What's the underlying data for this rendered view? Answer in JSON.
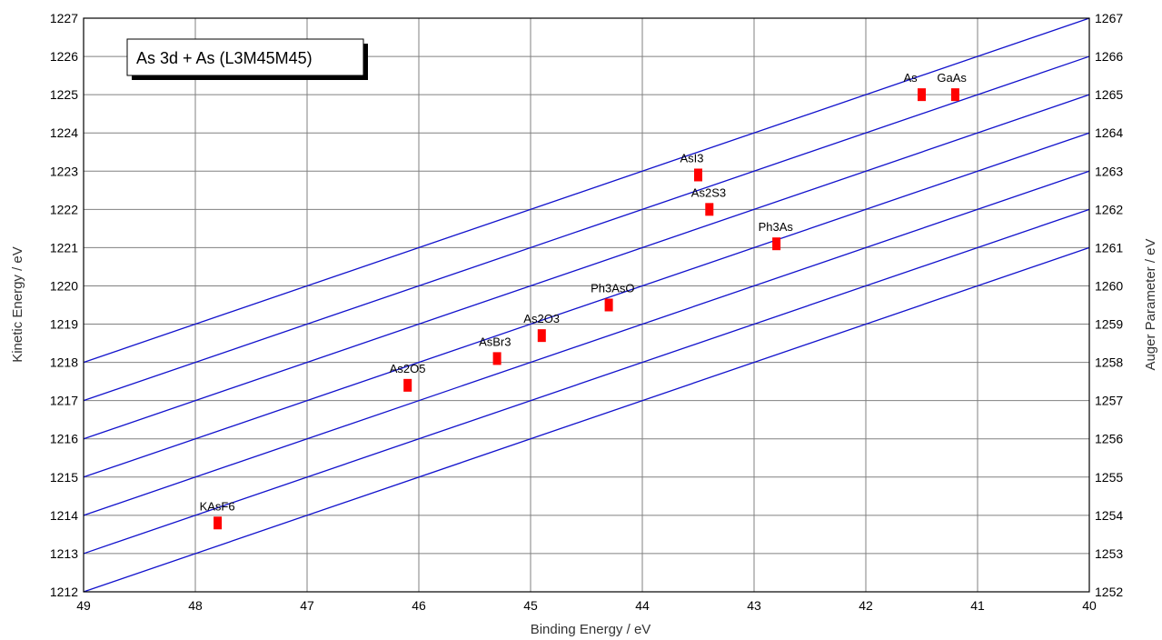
{
  "chart_data": {
    "type": "scatter",
    "title": "As 3d + As (L3M45M45)",
    "xlabel": "Binding Energy / eV",
    "ylabel": "Kinetic Energy / eV",
    "y2label": "Auger Parameter / eV",
    "xlim": [
      49,
      40
    ],
    "x_reversed": true,
    "ylim": [
      1212,
      1227
    ],
    "y2lim": [
      1252,
      1267
    ],
    "grid": true,
    "x_ticks": [
      49,
      48,
      47,
      46,
      45,
      44,
      43,
      42,
      41,
      40
    ],
    "y_ticks": [
      1212,
      1213,
      1214,
      1215,
      1216,
      1217,
      1218,
      1219,
      1220,
      1221,
      1222,
      1223,
      1224,
      1225,
      1226,
      1227
    ],
    "y2_ticks": [
      1252,
      1253,
      1254,
      1255,
      1256,
      1257,
      1258,
      1259,
      1260,
      1261,
      1262,
      1263,
      1264,
      1265,
      1266,
      1267
    ],
    "auger_lines": [
      1261,
      1262,
      1263,
      1264,
      1265,
      1266,
      1267
    ],
    "colors": {
      "lines": "#1010cc",
      "points": "#ff0000",
      "grid": "#808080"
    },
    "points": [
      {
        "label": "As",
        "x": 41.5,
        "y": 1225.0
      },
      {
        "label": "GaAs",
        "x": 41.2,
        "y": 1225.0
      },
      {
        "label": "AsI3",
        "x": 43.5,
        "y": 1222.9
      },
      {
        "label": "As2S3",
        "x": 43.4,
        "y": 1222.0
      },
      {
        "label": "Ph3As",
        "x": 42.8,
        "y": 1221.1
      },
      {
        "label": "Ph3AsO",
        "x": 44.3,
        "y": 1219.5
      },
      {
        "label": "As2O3",
        "x": 44.9,
        "y": 1218.7
      },
      {
        "label": "AsBr3",
        "x": 45.3,
        "y": 1218.1
      },
      {
        "label": "As2O5",
        "x": 46.1,
        "y": 1217.4
      },
      {
        "label": "KAsF6",
        "x": 47.8,
        "y": 1213.8
      }
    ]
  }
}
